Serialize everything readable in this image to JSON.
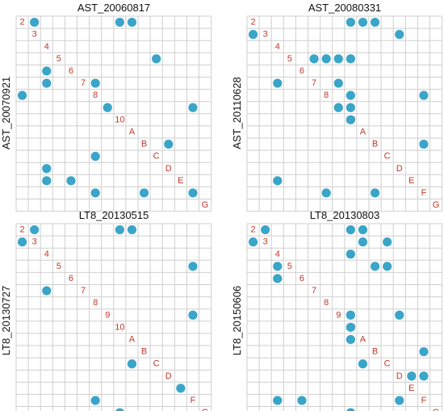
{
  "chart_data": [
    {
      "type": "scatter",
      "title": "AST_20060817",
      "ylabel": "AST_20070921",
      "diagonal_labels": [
        "2",
        "3",
        "4",
        "5",
        "6",
        "7",
        "8",
        "9",
        "10",
        "A",
        "B",
        "C",
        "D",
        "E",
        "F",
        "G"
      ],
      "points": [
        [
          1,
          0
        ],
        [
          8,
          0
        ],
        [
          9,
          0
        ],
        [
          11,
          3
        ],
        [
          2,
          4
        ],
        [
          2,
          5
        ],
        [
          6,
          5
        ],
        [
          0,
          6
        ],
        [
          7,
          7
        ],
        [
          14,
          7
        ],
        [
          12,
          10
        ],
        [
          6,
          11
        ],
        [
          2,
          12
        ],
        [
          2,
          13
        ],
        [
          4,
          13
        ],
        [
          6,
          14
        ],
        [
          10,
          14
        ],
        [
          14,
          14
        ]
      ]
    },
    {
      "type": "scatter",
      "title": "AST_20080331",
      "ylabel": "AST_20110628",
      "diagonal_labels": [
        "2",
        "3",
        "4",
        "5",
        "6",
        "7",
        "8",
        "9",
        "10",
        "A",
        "B",
        "C",
        "D",
        "E",
        "F",
        "G"
      ],
      "points": [
        [
          8,
          0
        ],
        [
          9,
          0
        ],
        [
          10,
          0
        ],
        [
          0,
          1
        ],
        [
          12,
          1
        ],
        [
          5,
          3
        ],
        [
          6,
          3
        ],
        [
          7,
          3
        ],
        [
          8,
          3
        ],
        [
          2,
          5
        ],
        [
          7,
          5
        ],
        [
          8,
          6
        ],
        [
          14,
          6
        ],
        [
          7,
          7
        ],
        [
          8,
          7
        ],
        [
          8,
          8
        ],
        [
          14,
          10
        ],
        [
          2,
          13
        ],
        [
          6,
          14
        ],
        [
          10,
          14
        ]
      ]
    },
    {
      "type": "scatter",
      "title": "LT8_20130515",
      "ylabel": "LT8_20130727",
      "diagonal_labels": [
        "2",
        "3",
        "4",
        "5",
        "6",
        "7",
        "8",
        "9",
        "10",
        "A",
        "B",
        "C",
        "D",
        "E",
        "F",
        "G"
      ],
      "points": [
        [
          1,
          0
        ],
        [
          8,
          0
        ],
        [
          9,
          0
        ],
        [
          0,
          1
        ],
        [
          14,
          3
        ],
        [
          2,
          5
        ],
        [
          14,
          7
        ],
        [
          9,
          11
        ],
        [
          13,
          13
        ],
        [
          6,
          14
        ],
        [
          8,
          15
        ]
      ]
    },
    {
      "type": "scatter",
      "title": "LT8_20130803",
      "ylabel": "LT8_20150606",
      "diagonal_labels": [
        "2",
        "3",
        "4",
        "5",
        "6",
        "7",
        "8",
        "9",
        "10",
        "A",
        "B",
        "C",
        "D",
        "E",
        "F",
        "G"
      ],
      "points": [
        [
          1,
          0
        ],
        [
          8,
          0
        ],
        [
          9,
          0
        ],
        [
          0,
          1
        ],
        [
          9,
          1
        ],
        [
          11,
          1
        ],
        [
          8,
          2
        ],
        [
          2,
          3
        ],
        [
          10,
          3
        ],
        [
          11,
          3
        ],
        [
          2,
          4
        ],
        [
          8,
          7
        ],
        [
          12,
          7
        ],
        [
          8,
          8
        ],
        [
          8,
          9
        ],
        [
          14,
          10
        ],
        [
          9,
          11
        ],
        [
          13,
          12
        ],
        [
          14,
          12
        ],
        [
          2,
          14
        ],
        [
          4,
          14
        ],
        [
          12,
          14
        ],
        [
          8,
          15
        ]
      ]
    }
  ]
}
